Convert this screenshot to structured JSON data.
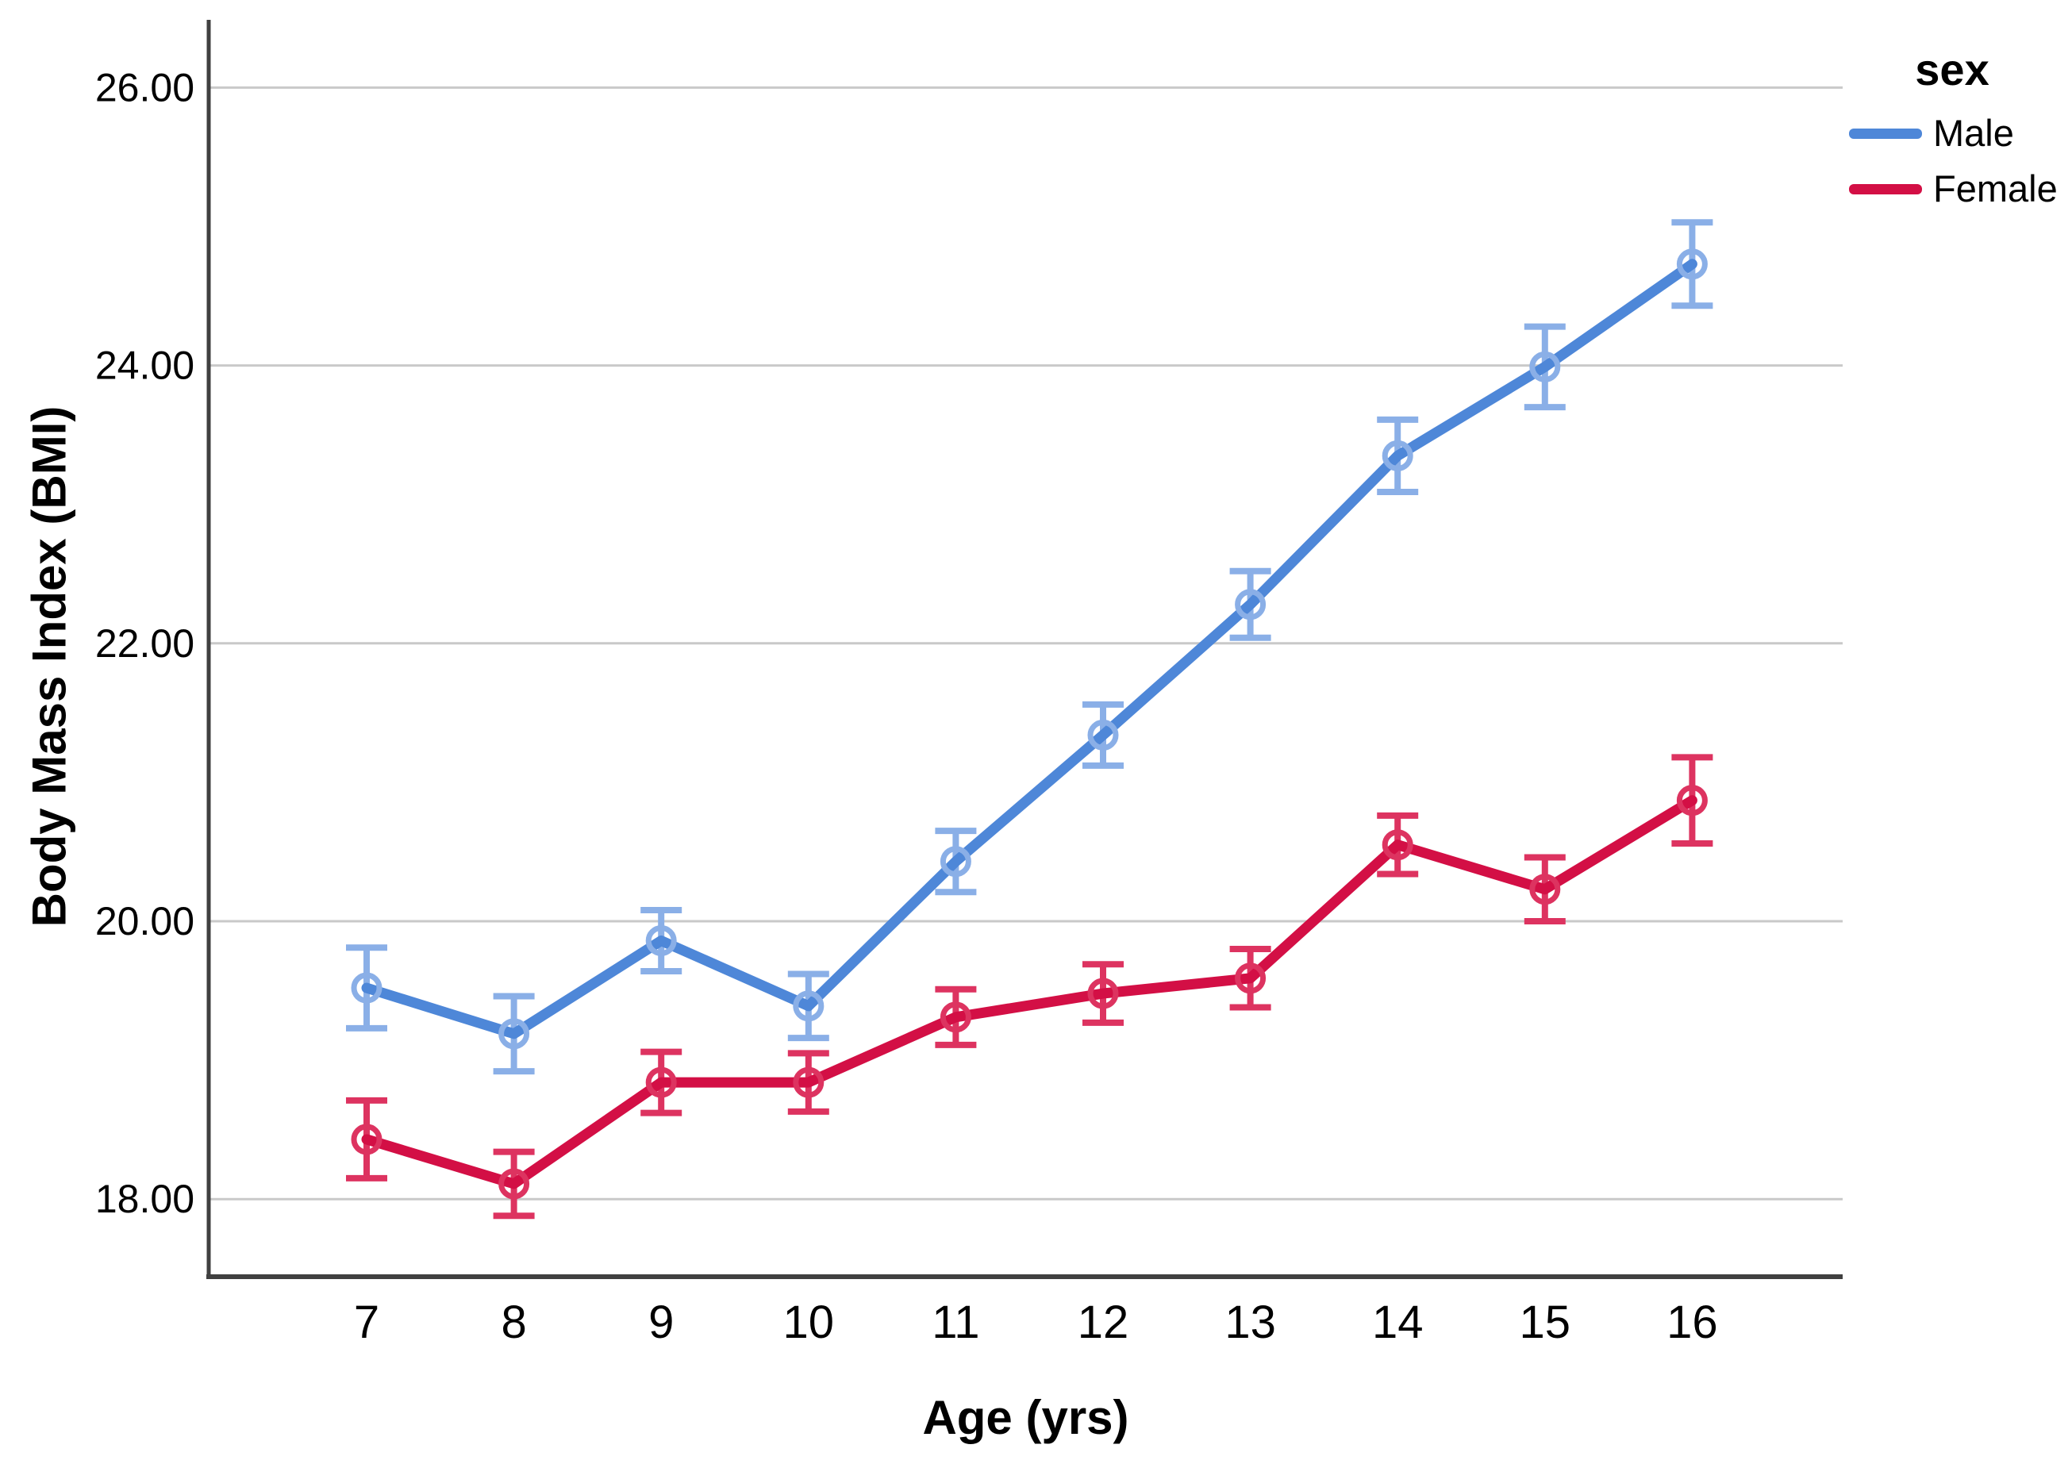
{
  "chart_data": {
    "type": "line",
    "title": "",
    "xlabel": "Age (yrs)",
    "ylabel": "Body Mass Index (BMI)",
    "x": [
      7,
      8,
      9,
      10,
      11,
      12,
      13,
      14,
      15,
      16
    ],
    "xtick_labels": [
      "7",
      "8",
      "9",
      "10",
      "11",
      "12",
      "13",
      "14",
      "15",
      "16"
    ],
    "yticks": [
      18,
      20,
      22,
      24,
      26
    ],
    "ytick_labels": [
      "18.00",
      "20.00",
      "22.00",
      "24.00",
      "26.00"
    ],
    "ylim": [
      17.35,
      26.45
    ],
    "grid": "horizontal",
    "marker": "open-circle",
    "error_bars": true,
    "legend": {
      "title": "sex",
      "position": "top-right-outside",
      "items": [
        "Male",
        "Female"
      ]
    },
    "series": [
      {
        "name": "Male",
        "color": "#4e87d8",
        "error_color": "#8aafe7",
        "values": [
          19.52,
          19.19,
          19.86,
          19.39,
          20.43,
          21.34,
          22.28,
          23.35,
          23.99,
          24.73
        ],
        "errors": [
          0.29,
          0.27,
          0.22,
          0.23,
          0.22,
          0.22,
          0.24,
          0.26,
          0.29,
          0.3
        ]
      },
      {
        "name": "Female",
        "color": "#d30f45",
        "error_color": "#dd3360",
        "values": [
          18.43,
          18.11,
          18.84,
          18.84,
          19.31,
          19.48,
          19.59,
          20.55,
          20.23,
          20.87
        ],
        "errors": [
          0.28,
          0.23,
          0.22,
          0.21,
          0.2,
          0.21,
          0.21,
          0.21,
          0.23,
          0.31
        ]
      }
    ],
    "colors": {
      "background": "#ffffff",
      "gridline": "#c9c9c9",
      "axis_line": "#404040",
      "text": "#000000"
    }
  }
}
